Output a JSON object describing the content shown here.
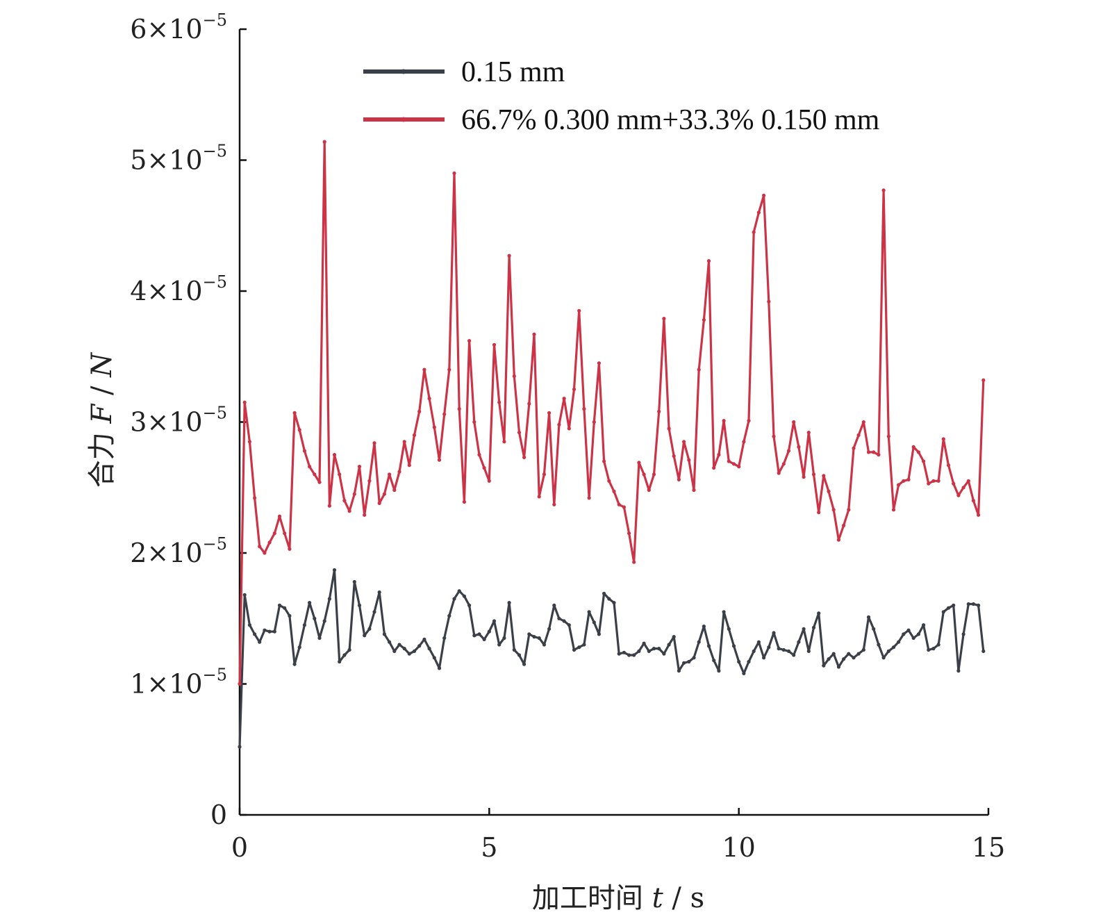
{
  "chart_data": {
    "type": "line",
    "xlabel_prefix": "加工时间",
    "xlabel_var": "t",
    "xlabel_unit": " / s",
    "ylabel_prefix": "合力",
    "ylabel_var": "F",
    "ylabel_sep": " / ",
    "ylabel_unit": "N",
    "xlim": [
      0,
      15
    ],
    "ylim": [
      0,
      6e-05
    ],
    "x_ticks": [
      0,
      5,
      10,
      15
    ],
    "x_tick_labels": [
      "0",
      "5",
      "10",
      "15"
    ],
    "y_ticks": [
      0,
      1e-05,
      2e-05,
      3e-05,
      4e-05,
      5e-05,
      6e-05
    ],
    "y_tick_mantissa": [
      "0",
      "1×10",
      "2×10",
      "3×10",
      "4×10",
      "5×10",
      "6×10"
    ],
    "y_tick_exponent": [
      "",
      "−5",
      "−5",
      "−5",
      "−5",
      "−5",
      "−5"
    ],
    "grid": false,
    "legend_position": "top",
    "x_sample_step": 0.1,
    "series": [
      {
        "name": "0.15 mm",
        "color": "#3b3f47",
        "values": [
          0.52,
          1.68,
          1.45,
          1.38,
          1.32,
          1.41,
          1.4,
          1.4,
          1.6,
          1.58,
          1.52,
          1.15,
          1.28,
          1.45,
          1.62,
          1.5,
          1.35,
          1.48,
          1.65,
          1.87,
          1.17,
          1.22,
          1.26,
          1.78,
          1.6,
          1.37,
          1.42,
          1.55,
          1.7,
          1.38,
          1.32,
          1.25,
          1.3,
          1.27,
          1.23,
          1.25,
          1.29,
          1.34,
          1.27,
          1.2,
          1.12,
          1.35,
          1.52,
          1.65,
          1.71,
          1.67,
          1.6,
          1.37,
          1.38,
          1.34,
          1.4,
          1.48,
          1.3,
          1.35,
          1.62,
          1.26,
          1.22,
          1.15,
          1.38,
          1.36,
          1.35,
          1.3,
          1.42,
          1.6,
          1.5,
          1.48,
          1.45,
          1.26,
          1.28,
          1.3,
          1.55,
          1.47,
          1.38,
          1.69,
          1.65,
          1.62,
          1.23,
          1.24,
          1.22,
          1.22,
          1.25,
          1.31,
          1.25,
          1.27,
          1.27,
          1.23,
          1.3,
          1.36,
          1.1,
          1.16,
          1.17,
          1.2,
          1.32,
          1.44,
          1.29,
          1.18,
          1.1,
          1.55,
          1.42,
          1.29,
          1.17,
          1.08,
          1.17,
          1.25,
          1.32,
          1.2,
          1.28,
          1.39,
          1.27,
          1.26,
          1.25,
          1.22,
          1.32,
          1.42,
          1.25,
          1.43,
          1.54,
          1.14,
          1.19,
          1.23,
          1.13,
          1.19,
          1.23,
          1.2,
          1.23,
          1.26,
          1.51,
          1.42,
          1.3,
          1.2,
          1.25,
          1.28,
          1.32,
          1.38,
          1.41,
          1.35,
          1.38,
          1.45,
          1.26,
          1.27,
          1.3,
          1.55,
          1.58,
          1.6,
          1.1,
          1.38,
          1.61,
          1.61,
          1.6,
          1.25
        ]
      },
      {
        "name": "66.7% 0.300 mm+33.3% 0.150 mm",
        "color": "#cc3346",
        "values": [
          1.0,
          3.15,
          2.85,
          2.42,
          2.05,
          2.0,
          2.08,
          2.15,
          2.28,
          2.15,
          2.03,
          3.07,
          2.94,
          2.78,
          2.66,
          2.6,
          2.54,
          5.14,
          2.36,
          2.75,
          2.6,
          2.4,
          2.32,
          2.45,
          2.66,
          2.29,
          2.55,
          2.84,
          2.38,
          2.45,
          2.6,
          2.48,
          2.62,
          2.85,
          2.67,
          2.9,
          3.08,
          3.4,
          3.18,
          2.96,
          2.71,
          3.06,
          3.4,
          4.9,
          3.1,
          2.39,
          3.62,
          3.0,
          2.75,
          2.65,
          2.55,
          3.59,
          3.15,
          2.85,
          4.27,
          3.35,
          2.92,
          2.73,
          3.14,
          3.67,
          2.43,
          2.6,
          3.07,
          2.37,
          2.98,
          3.18,
          2.95,
          3.25,
          3.85,
          3.1,
          2.42,
          3.0,
          3.45,
          2.7,
          2.55,
          2.47,
          2.37,
          2.35,
          2.15,
          1.93,
          2.69,
          2.6,
          2.48,
          2.6,
          3.08,
          3.79,
          2.95,
          2.74,
          2.56,
          2.85,
          2.71,
          2.48,
          3.4,
          3.78,
          4.23,
          2.65,
          2.75,
          3.01,
          2.7,
          2.68,
          2.66,
          2.85,
          3.01,
          4.45,
          4.6,
          4.73,
          3.92,
          2.89,
          2.61,
          2.68,
          2.78,
          3.0,
          2.81,
          2.58,
          2.92,
          2.6,
          2.31,
          2.59,
          2.47,
          2.33,
          2.1,
          2.21,
          2.33,
          2.8,
          2.9,
          3.0,
          2.77,
          2.77,
          2.75,
          4.77,
          2.89,
          2.33,
          2.52,
          2.55,
          2.56,
          2.81,
          2.77,
          2.7,
          2.53,
          2.55,
          2.55,
          2.87,
          2.67,
          2.53,
          2.44,
          2.5,
          2.55,
          2.4,
          2.29,
          3.32
        ]
      }
    ]
  }
}
